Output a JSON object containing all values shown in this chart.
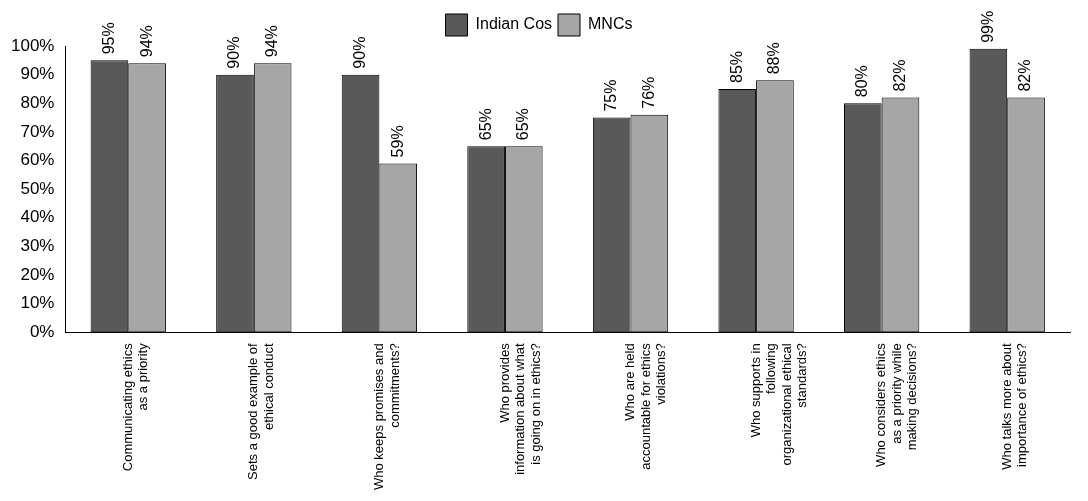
{
  "chart_data": {
    "type": "bar",
    "categories": [
      "Communicating ethics as a priority",
      "Sets a good example of ethical conduct",
      "Who keeps promises and commitments?",
      "Who provides information about what is going on in ethics?",
      "Who are held accountable for ethics violations?",
      "Who supports in following organizational ethical standards?",
      "Who considers ethics as a priority while making decisions?",
      "Who talks more about importance of ethics?"
    ],
    "series": [
      {
        "name": "Indian Cos",
        "color": "#595959",
        "values": [
          95,
          90,
          90,
          65,
          75,
          85,
          80,
          99
        ]
      },
      {
        "name": "MNCs",
        "color": "#a6a6a6",
        "values": [
          94,
          94,
          59,
          65,
          76,
          88,
          82,
          82
        ]
      }
    ],
    "ylim": [
      0,
      100
    ],
    "yticks": [
      {
        "value": 0,
        "label": "0%"
      },
      {
        "value": 10,
        "label": "10%"
      },
      {
        "value": 20,
        "label": "20%"
      },
      {
        "value": 30,
        "label": "30%"
      },
      {
        "value": 40,
        "label": "40%"
      },
      {
        "value": 50,
        "label": "50%"
      },
      {
        "value": 60,
        "label": "60%"
      },
      {
        "value": 70,
        "label": "70%"
      },
      {
        "value": 80,
        "label": "80%"
      },
      {
        "value": 90,
        "label": "90%"
      },
      {
        "value": 100,
        "label": "100%"
      }
    ],
    "value_labels": [
      [
        "95%",
        "90%",
        "90%",
        "65%",
        "75%",
        "85%",
        "80%",
        "99%"
      ],
      [
        "94%",
        "94%",
        "59%",
        "65%",
        "76%",
        "88%",
        "82%",
        "82%"
      ]
    ],
    "grid": false,
    "legend": "top"
  }
}
